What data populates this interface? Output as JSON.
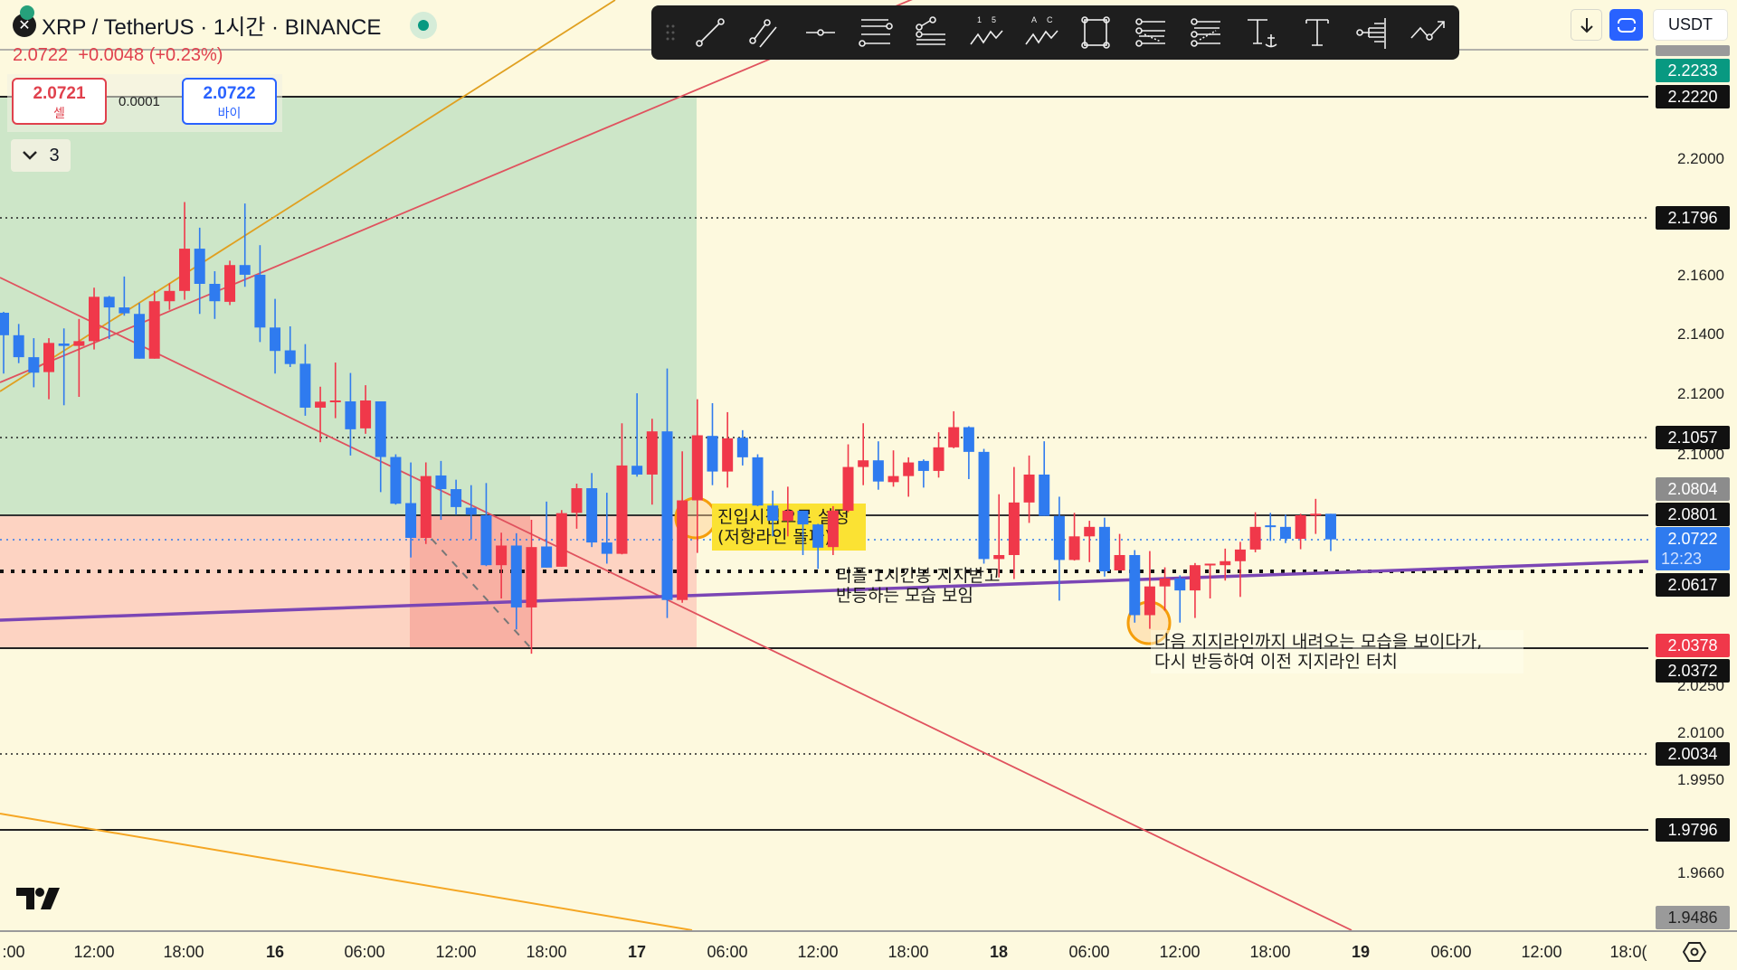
{
  "header": {
    "title": "XRP / TetherUS · 1시간 · BINANCE",
    "status": "live"
  },
  "quote": {
    "last": "2.0722",
    "change": "+0.0048",
    "change_pct": "(+0.23%)"
  },
  "trade": {
    "sell_price": "2.0721",
    "sell_label": "셀",
    "spread": "0.0001",
    "buy_price": "2.0722",
    "buy_label": "바이"
  },
  "indicators_toggle": {
    "count": "3"
  },
  "toolbar": {
    "tools": [
      "drag-handle",
      "trend-line",
      "parallel-channel",
      "horizontal-ray",
      "fib-retracement",
      "pitchfork",
      "elliott-wave",
      "abcd-pattern",
      "rectangle",
      "fib-channel",
      "trend-fib-extension",
      "anchored-text",
      "text",
      "long-position",
      "forecast"
    ],
    "elliott_labels": [
      "1",
      "5"
    ],
    "abc_labels": [
      "A",
      "C"
    ]
  },
  "top_right": {
    "scroll_down": "arrow-down-icon",
    "fullscreen": "fullscreen-icon",
    "currency": "USDT"
  },
  "colors": {
    "up": "#f0384a",
    "down": "#2f7bef",
    "background": "#fdf9de",
    "accent": "#2962ff",
    "trendline": "#e0525e",
    "orange": "#f5a623",
    "support": "#7b46b5"
  },
  "price_axis": {
    "ticks": [
      "2.2000",
      "2.1600",
      "2.1400",
      "2.1200",
      "2.1000",
      "2.0250",
      "2.0100",
      "1.9950",
      "1.9660"
    ],
    "labels": [
      {
        "value": "2.2233",
        "kind": "green"
      },
      {
        "value": "2.2220",
        "kind": "black"
      },
      {
        "value": "2.1796",
        "kind": "black"
      },
      {
        "value": "2.1057",
        "kind": "black"
      },
      {
        "value": "2.0804",
        "kind": "gray"
      },
      {
        "value": "2.0801",
        "kind": "black"
      },
      {
        "value": "2.0722",
        "countdown": "12:23",
        "kind": "blue"
      },
      {
        "value": "2.0617",
        "kind": "black"
      },
      {
        "value": "2.0378",
        "kind": "red"
      },
      {
        "value": "2.0372",
        "kind": "black"
      },
      {
        "value": "2.0034",
        "kind": "black"
      },
      {
        "value": "1.9796",
        "kind": "black"
      },
      {
        "value": "1.9486",
        "kind": "gray"
      }
    ]
  },
  "time_axis": [
    ":00",
    "12:00",
    "18:00",
    "16",
    "06:00",
    "12:00",
    "18:00",
    "17",
    "06:00",
    "12:00",
    "18:00",
    "18",
    "06:00",
    "12:00",
    "18:00",
    "19",
    "06:00",
    "12:00",
    "18:0("
  ],
  "annotations": {
    "entry": [
      "진입시점으로 설정",
      "(저항라인 돌파)"
    ],
    "support": [
      "리플 1시간봉 지지받고",
      "반등하는 모습 보임"
    ],
    "retest": [
      "다음 지지라인까지 내려오는 모습을 보이다가,",
      "다시 반등하여 이전 지지라인 터치"
    ]
  },
  "candles": [
    [
      2.1476,
      2.1479,
      2.1271,
      2.14
    ],
    [
      2.14,
      2.1438,
      2.1306,
      2.1326
    ],
    [
      2.1326,
      2.139,
      2.1225,
      2.1274
    ],
    [
      2.1276,
      2.139,
      2.1185,
      2.1374
    ],
    [
      2.1372,
      2.1423,
      2.1165,
      2.1364
    ],
    [
      2.1364,
      2.1455,
      2.1193,
      2.138
    ],
    [
      2.138,
      2.1561,
      2.1352,
      2.153
    ],
    [
      2.153,
      2.1533,
      2.1387,
      2.1494
    ],
    [
      2.1494,
      2.1599,
      2.1466,
      2.1474
    ],
    [
      2.1472,
      2.1509,
      2.1321,
      2.1321
    ],
    [
      2.1321,
      2.155,
      2.1321,
      2.1515
    ],
    [
      2.1515,
      2.1576,
      2.1486,
      2.155
    ],
    [
      2.155,
      2.1854,
      2.152,
      2.1694
    ],
    [
      2.1694,
      2.1766,
      2.1472,
      2.1574
    ],
    [
      2.1574,
      2.1617,
      2.1455,
      2.1515
    ],
    [
      2.1513,
      2.1653,
      2.1502,
      2.1638
    ],
    [
      2.1638,
      2.1849,
      2.1564,
      2.1605
    ],
    [
      2.1605,
      2.1706,
      2.1377,
      2.1426
    ],
    [
      2.1426,
      2.1523,
      2.1271,
      2.1347
    ],
    [
      2.1349,
      2.143,
      2.1293,
      2.1303
    ],
    [
      2.1304,
      2.137,
      2.113,
      2.1157
    ],
    [
      2.1157,
      2.1227,
      2.1042,
      2.1177
    ],
    [
      2.1178,
      2.1308,
      2.1122,
      2.1181
    ],
    [
      2.1178,
      2.1273,
      2.0998,
      2.1085
    ],
    [
      2.1088,
      2.1232,
      2.107,
      2.1181
    ],
    [
      2.1178,
      2.1178,
      2.0877,
      2.0993
    ],
    [
      2.0993,
      2.1002,
      2.0836,
      2.0839
    ],
    [
      2.0841,
      2.0975,
      2.0663,
      2.0727
    ],
    [
      2.0727,
      2.0975,
      2.0707,
      2.093
    ],
    [
      2.0932,
      2.098,
      2.0786,
      2.0887
    ],
    [
      2.0887,
      2.0918,
      2.0803,
      2.0828
    ],
    [
      2.0826,
      2.09,
      2.0722,
      2.0803
    ],
    [
      2.0801,
      2.0907,
      2.0635,
      2.0638
    ],
    [
      2.0638,
      2.0744,
      2.053,
      2.0702
    ],
    [
      2.0702,
      2.0742,
      2.043,
      2.0501
    ],
    [
      2.0501,
      2.0786,
      2.0352,
      2.0697
    ],
    [
      2.0699,
      2.0846,
      2.063,
      2.063
    ],
    [
      2.0633,
      2.0818,
      2.0633,
      2.0808
    ],
    [
      2.0809,
      2.0905,
      2.0757,
      2.089
    ],
    [
      2.089,
      2.094,
      2.0697,
      2.0712
    ],
    [
      2.0712,
      2.0875,
      2.0643,
      2.0675
    ],
    [
      2.0675,
      2.1105,
      2.0673,
      2.0965
    ],
    [
      2.0964,
      2.1205,
      2.0928,
      2.0935
    ],
    [
      2.0935,
      2.112,
      2.0836,
      2.1078
    ],
    [
      2.1078,
      2.1288,
      2.0467,
      2.0525
    ],
    [
      2.0525,
      2.1012,
      2.0516,
      2.085
    ],
    [
      2.085,
      2.1185,
      2.0678,
      2.1065
    ],
    [
      2.1063,
      2.1172,
      2.09,
      2.0945
    ],
    [
      2.0945,
      2.1142,
      2.0892,
      2.1055
    ],
    [
      2.1057,
      2.1082,
      2.0965,
      2.0992
    ],
    [
      2.0992,
      2.1002,
      2.0831,
      2.0833
    ],
    [
      2.0833,
      2.0882,
      2.0732,
      2.0783
    ],
    [
      2.0783,
      2.0895,
      2.0732,
      2.0816
    ],
    [
      2.0816,
      2.0816,
      2.0671,
      2.0771
    ],
    [
      2.0771,
      2.0773,
      2.0626,
      2.0695
    ],
    [
      2.0697,
      2.0831,
      2.0671,
      2.0816
    ],
    [
      2.0816,
      2.1035,
      2.0811,
      2.096
    ],
    [
      2.096,
      2.1105,
      2.09,
      2.0982
    ],
    [
      2.0982,
      2.1045,
      2.0885,
      2.0912
    ],
    [
      2.091,
      2.1015,
      2.0895,
      2.093
    ],
    [
      2.093,
      2.0992,
      2.0862,
      2.0975
    ],
    [
      2.098,
      2.0985,
      2.0892,
      2.0947
    ],
    [
      2.0947,
      2.1075,
      2.0925,
      2.1025
    ],
    [
      2.1025,
      2.1145,
      2.1022,
      2.1092
    ],
    [
      2.1092,
      2.1095,
      2.092,
      2.101
    ],
    [
      2.101,
      2.102,
      2.0643,
      2.0658
    ],
    [
      2.0658,
      2.087,
      2.0598,
      2.0671
    ],
    [
      2.0671,
      2.096,
      2.0593,
      2.0843
    ],
    [
      2.0843,
      2.0998,
      2.0776,
      2.0935
    ],
    [
      2.0935,
      2.1045,
      2.0799,
      2.0799
    ],
    [
      2.0799,
      2.0862,
      2.0523,
      2.0655
    ],
    [
      2.0655,
      2.0809,
      2.0653,
      2.0732
    ],
    [
      2.0732,
      2.0783,
      2.0648,
      2.0763
    ],
    [
      2.0763,
      2.0793,
      2.0601,
      2.0618
    ],
    [
      2.0621,
      2.074,
      2.0621,
      2.0671
    ],
    [
      2.0671,
      2.0687,
      2.0452,
      2.0476
    ],
    [
      2.0476,
      2.0684,
      2.0432,
      2.0569
    ],
    [
      2.0569,
      2.0631,
      2.0491,
      2.0595
    ],
    [
      2.0595,
      2.0605,
      2.0452,
      2.0556
    ],
    [
      2.0556,
      2.0645,
      2.0467,
      2.0638
    ],
    [
      2.064,
      2.0643,
      2.053,
      2.0643
    ],
    [
      2.0638,
      2.0692,
      2.0588,
      2.0651
    ],
    [
      2.0651,
      2.0714,
      2.0535,
      2.0689
    ],
    [
      2.0689,
      2.0811,
      2.068,
      2.0763
    ],
    [
      2.0768,
      2.0809,
      2.0717,
      2.0763
    ],
    [
      2.0763,
      2.0803,
      2.071,
      2.0724
    ],
    [
      2.0724,
      2.0806,
      2.069,
      2.0801
    ],
    [
      2.0801,
      2.0855,
      2.074,
      2.0806
    ],
    [
      2.0806,
      2.0806,
      2.0684,
      2.0722
    ]
  ]
}
